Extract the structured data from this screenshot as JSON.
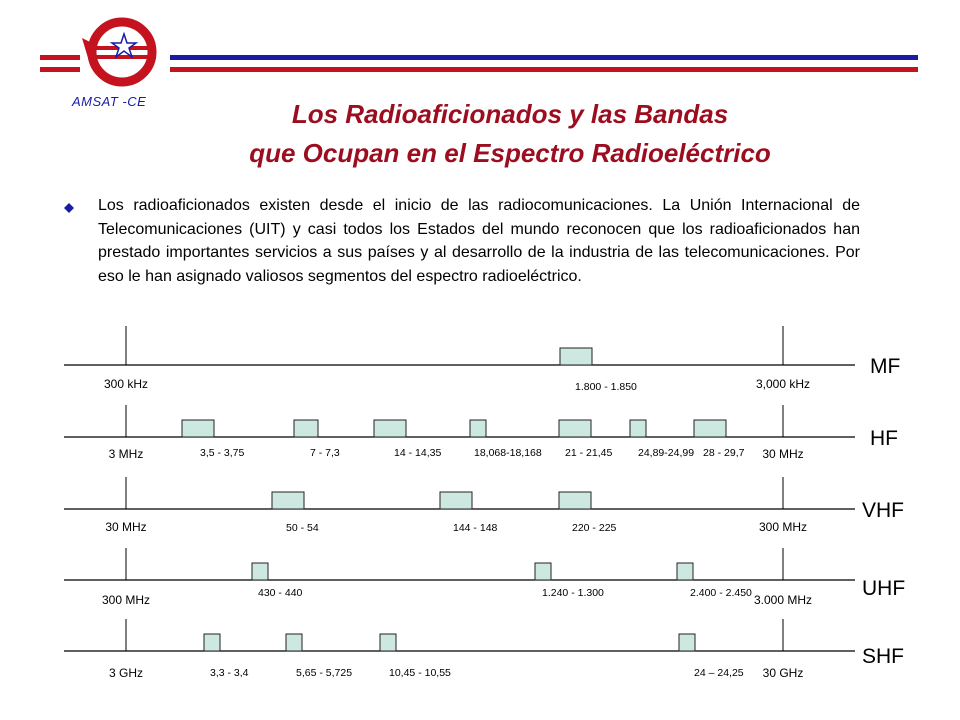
{
  "header": {
    "logo_text": "AMSAT -CE",
    "title_line1": "Los Radioaficionados y las Bandas",
    "title_line2": "que Ocupan en el Espectro Radioeléctrico"
  },
  "intro": {
    "text": "Los radioaficionados existen desde el inicio de las radiocomunicaciones.  La Unión Internacional de Telecomunicaciones (UIT) y casi todos los Estados del mundo reconocen que los radioaficionados han prestado importantes servicios a sus países y al desarrollo de la industria de las telecomunicaciones.  Por eso le han asignado valiosos segmentos del espectro radioeléctrico."
  },
  "colors": {
    "title": "#9b0d1f",
    "stripe_red": "#c4121f",
    "stripe_blue": "#1a1aa6",
    "segment_fill": "#cde8e1",
    "segment_stroke": "#222222"
  },
  "bands": [
    {
      "name": "MF",
      "start_label": "300 kHz",
      "end_label": "3,000 kHz",
      "segments": [
        {
          "label": "1.800  -  1.850"
        }
      ]
    },
    {
      "name": "HF",
      "start_label": "3 MHz",
      "end_label": "30 MHz",
      "segments": [
        {
          "label": "3,5 -  3,75"
        },
        {
          "label": "7   -  7,3"
        },
        {
          "label": "14 - 14,35"
        },
        {
          "label": "18,068-18,168"
        },
        {
          "label": "21 - 21,45"
        },
        {
          "label": "24,89-24,99"
        },
        {
          "label": "28 - 29,7"
        }
      ]
    },
    {
      "name": "VHF",
      "start_label": "30 MHz",
      "end_label": "300 MHz",
      "segments": [
        {
          "label": "50    -    54"
        },
        {
          "label": "144   -   148"
        },
        {
          "label": "220   -   225"
        }
      ]
    },
    {
      "name": "UHF",
      "start_label": "300 MHz",
      "end_label": "3.000 MHz",
      "segments": [
        {
          "label": "430  -  440"
        },
        {
          "label": "1.240   -  1.300"
        },
        {
          "label": "2.400  -  2.450"
        }
      ]
    },
    {
      "name": "SHF",
      "start_label": "3 GHz",
      "end_label": "30 GHz",
      "segments": [
        {
          "label": "3,3 - 3,4"
        },
        {
          "label": "5,65 - 5,725"
        },
        {
          "label": "10,45 - 10,55"
        },
        {
          "label": "24 – 24,25"
        }
      ]
    }
  ]
}
